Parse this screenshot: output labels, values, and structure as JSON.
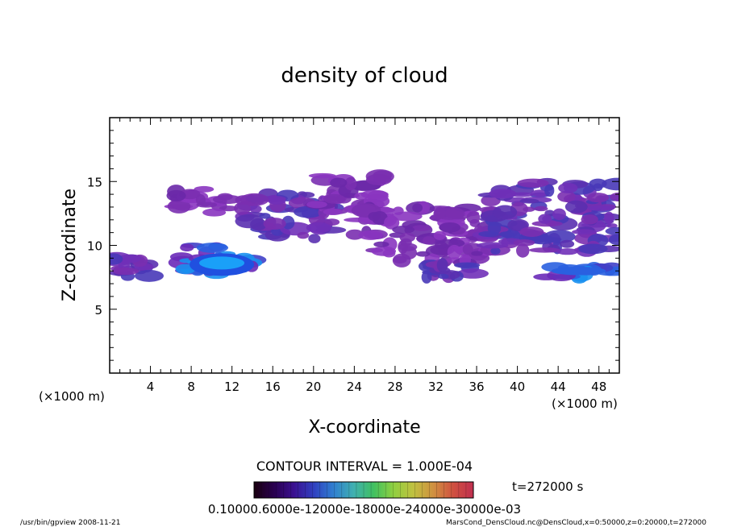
{
  "chart_data": {
    "type": "heatmap",
    "title": "density of cloud",
    "xlabel": "X-coordinate",
    "ylabel": "Z-coordinate",
    "x_unit_left": "(×1000 m)",
    "x_unit_right": "(×1000 m)",
    "xlim": [
      0,
      50
    ],
    "ylim": [
      0,
      20
    ],
    "x_ticks": [
      4,
      8,
      12,
      16,
      20,
      24,
      28,
      32,
      36,
      40,
      44,
      48
    ],
    "y_ticks": [
      5,
      10,
      15
    ],
    "contour_interval": "CONTOUR INTERVAL = 1.000E-04",
    "time_label": "t=272000 s",
    "colorbar_labels": [
      "0.1000",
      "0.60",
      "0.1200",
      "0.1800",
      "0.2400",
      "0.3000",
      "0.3000e-03"
    ],
    "colorbar_caption": "0.10000.6000e-12000e-18000e-24000e-30000e-03",
    "colorbar_colors": [
      "#1a0010",
      "#2a0050",
      "#3a1090",
      "#3040c0",
      "#3080d0",
      "#40b0b0",
      "#40c060",
      "#90d040",
      "#c0c040",
      "#d09040",
      "#d05040",
      "#c03050"
    ],
    "cloud_regions": [
      {
        "x": [
          0,
          4
        ],
        "z": [
          7.5,
          9
        ],
        "level": "medium"
      },
      {
        "x": [
          7,
          14
        ],
        "z": [
          7.5,
          10
        ],
        "level": "high",
        "peak": [
          11,
          9
        ]
      },
      {
        "x": [
          6,
          12
        ],
        "z": [
          12.5,
          14.5
        ],
        "level": "low"
      },
      {
        "x": [
          13,
          22
        ],
        "z": [
          10.5,
          14
        ],
        "level": "medium"
      },
      {
        "x": [
          20,
          27
        ],
        "z": [
          12.5,
          15.5
        ],
        "level": "low"
      },
      {
        "x": [
          24,
          38
        ],
        "z": [
          8.5,
          13
        ],
        "level": "low"
      },
      {
        "x": [
          31,
          36
        ],
        "z": [
          7.5,
          8.5
        ],
        "level": "medium"
      },
      {
        "x": [
          37,
          50
        ],
        "z": [
          9.5,
          15
        ],
        "level": "medium"
      },
      {
        "x": [
          42,
          50
        ],
        "z": [
          7.5,
          8.5
        ],
        "level": "high"
      }
    ],
    "grid": false
  },
  "footer": {
    "left": "/usr/bin/gpview   2008-11-21",
    "right": "MarsCond_DensCloud.nc@DensCloud,x=0:50000,z=0:20000,t=272000"
  }
}
